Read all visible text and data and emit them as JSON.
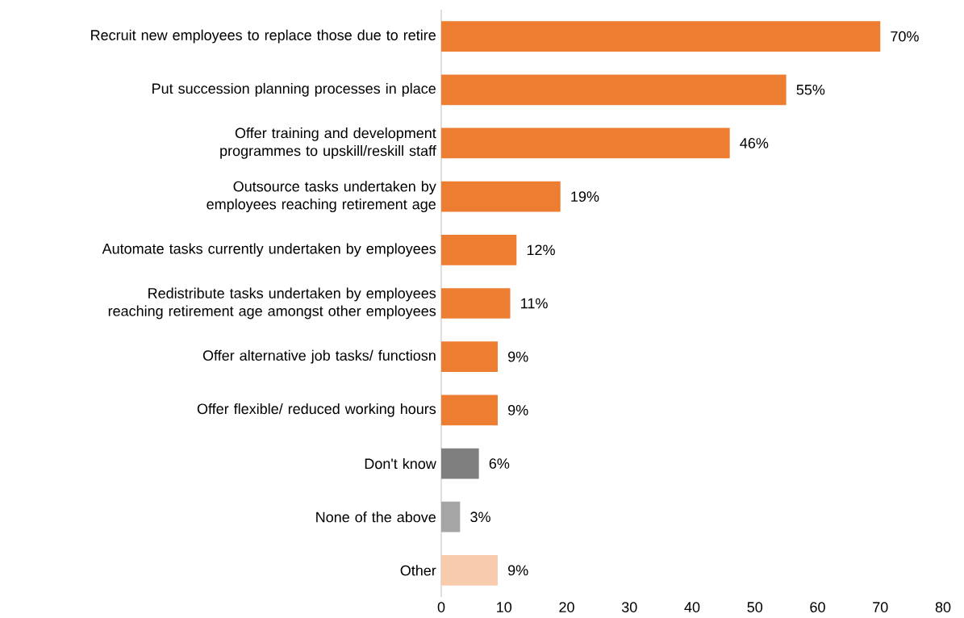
{
  "chart_data": {
    "type": "bar",
    "orientation": "horizontal",
    "categories": [
      "Recruit new employees to replace those due to retire",
      "Put succession planning processes in place",
      "Offer training and development programmes to upskill/reskill staff",
      "Outsource tasks undertaken by employees reaching retirement age",
      "Automate tasks currently undertaken by employees",
      "Redistribute tasks undertaken by employees reaching retirement age amongst other employees",
      "Offer alternative job tasks/ functiosn",
      "Offer flexible/ reduced working hours",
      "Don't know",
      "None of the above",
      "Other"
    ],
    "values": [
      70,
      55,
      46,
      19,
      12,
      11,
      9,
      9,
      6,
      3,
      9
    ],
    "value_labels": [
      "70%",
      "55%",
      "46%",
      "19%",
      "12%",
      "11%",
      "9%",
      "9%",
      "6%",
      "3%",
      "9%"
    ],
    "colors": [
      "#ed7d31",
      "#ed7d31",
      "#ed7d31",
      "#ed7d31",
      "#ed7d31",
      "#ed7d31",
      "#ed7d31",
      "#ed7d31",
      "#7f7f7f",
      "#a5a5a5",
      "#f8cbad"
    ],
    "xlim": [
      0,
      80
    ],
    "xticks": [
      0,
      10,
      20,
      30,
      40,
      50,
      60,
      70,
      80
    ],
    "grid": false
  }
}
